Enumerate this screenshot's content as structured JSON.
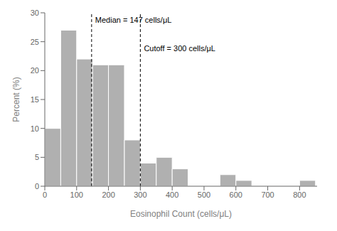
{
  "chart_data": {
    "type": "bar",
    "x": [
      0,
      50,
      100,
      150,
      200,
      250,
      300,
      350,
      400,
      550,
      600,
      800
    ],
    "values": [
      10,
      27,
      22,
      21,
      21,
      8,
      4,
      5,
      3,
      2,
      1,
      1
    ],
    "color": "#b0b0b0",
    "xlabel": "Eosinophil Count (cells/μL)",
    "ylabel": "Percent (%)",
    "xlim": [
      0,
      855
    ],
    "ylim": [
      0,
      30
    ],
    "xticks": [
      0,
      100,
      200,
      300,
      400,
      500,
      600,
      700,
      800
    ],
    "yticks": [
      0,
      5,
      10,
      15,
      20,
      25,
      30
    ],
    "grid": false,
    "reference_lines": [
      {
        "x": 147,
        "label": "Median = 147 cells/μL",
        "line_style": "dashed",
        "color": "#000000"
      },
      {
        "x": 300,
        "label": "Cutoff = 300 cells/μL",
        "line_style": "dashed",
        "color": "#000000"
      }
    ]
  }
}
